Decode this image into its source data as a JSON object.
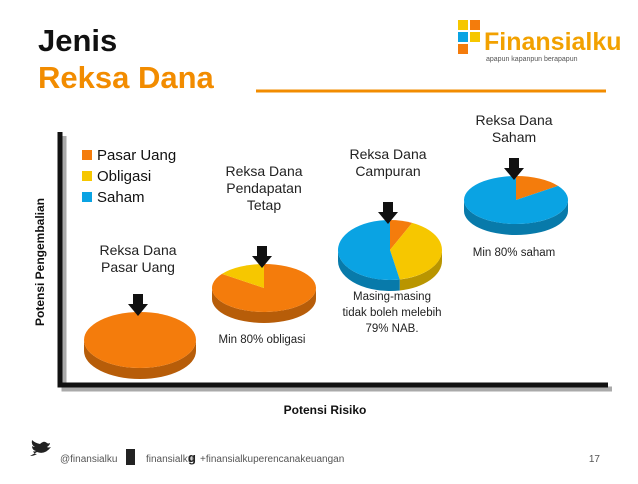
{
  "header": {
    "title_line1": "Jenis",
    "title_line2": "Reksa Dana"
  },
  "logo": {
    "name": "Finansialku",
    "tagline": "apapun kapanpun berapapun"
  },
  "chart": {
    "y_axis_label": "Potensi Pengembalian",
    "x_axis_label": "Potensi Risiko",
    "legend": [
      {
        "name": "Pasar Uang",
        "color": "#f47c0c"
      },
      {
        "name": "Obligasi",
        "color": "#f6c700"
      },
      {
        "name": "Saham",
        "color": "#0aa3e3"
      }
    ],
    "pies": [
      {
        "label": [
          "Reksa Dana",
          "Pasar Uang"
        ],
        "values": [
          100,
          0,
          0
        ],
        "note": []
      },
      {
        "label": [
          "Reksa Dana",
          "Pendapatan",
          "Tetap"
        ],
        "values": [
          85,
          15,
          0
        ],
        "note": [
          "Min 80% obligasi"
        ]
      },
      {
        "label": [
          "Reksa Dana",
          "Campuran"
        ],
        "values": [
          7,
          40,
          53
        ],
        "note": [
          "Masing-masing",
          "tidak boleh melebih",
          "79% NAB."
        ]
      },
      {
        "label": [
          "Reksa Dana",
          "Saham"
        ],
        "values": [
          15,
          0,
          85
        ],
        "note": [
          "Min 80% saham"
        ]
      }
    ]
  },
  "footer": {
    "twitter": "@finansialku",
    "facebook": "finansialku",
    "google": "+finansialkuperencanakeuangan",
    "page": "17"
  }
}
